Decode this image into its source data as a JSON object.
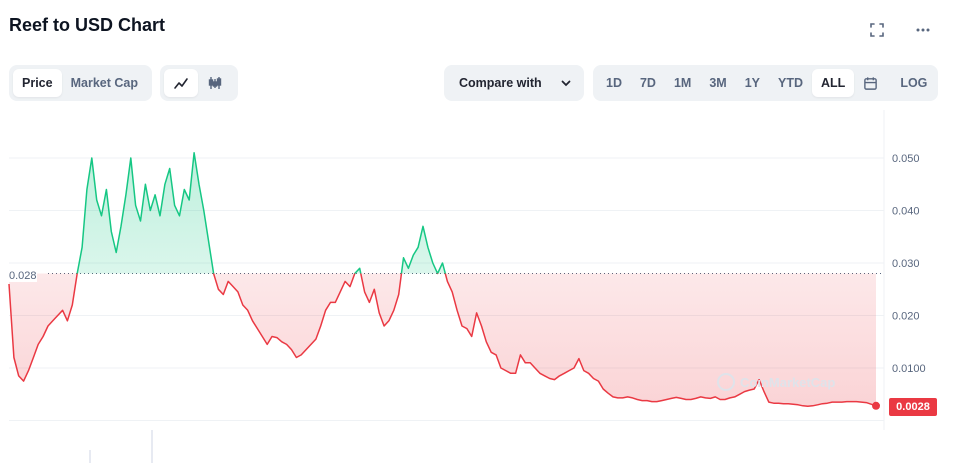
{
  "header": {
    "title": "Reef to USD Chart"
  },
  "icons": {
    "fullscreen": "fullscreen-icon",
    "more": "more-icon",
    "calendar": "calendar-icon",
    "line": "line-chart-icon",
    "candle": "candlestick-icon",
    "chevron": "chevron-down-icon"
  },
  "toolbar": {
    "type_tabs": [
      "Price",
      "Market Cap"
    ],
    "compare_label": "Compare with",
    "ranges": [
      "1D",
      "7D",
      "1M",
      "3M",
      "1Y",
      "YTD",
      "ALL"
    ],
    "log_label": "LOG"
  },
  "chart_data": {
    "type": "area",
    "y_ticks": [
      "0.050",
      "0.040",
      "0.030",
      "0.020",
      "0.0100"
    ],
    "reference_label": "0.028",
    "current_price_label": "0.0028",
    "watermark": "CoinMarketCap",
    "reference": 0.028,
    "ylim": [
      0,
      0.058
    ],
    "up_color": "#16c784",
    "down_color": "#ea3943",
    "values": [
      0.026,
      0.012,
      0.0085,
      0.0075,
      0.0095,
      0.012,
      0.0145,
      0.016,
      0.018,
      0.019,
      0.02,
      0.021,
      0.019,
      0.022,
      0.028,
      0.033,
      0.044,
      0.05,
      0.042,
      0.039,
      0.044,
      0.036,
      0.032,
      0.037,
      0.043,
      0.05,
      0.041,
      0.038,
      0.045,
      0.04,
      0.043,
      0.039,
      0.045,
      0.048,
      0.041,
      0.039,
      0.044,
      0.042,
      0.051,
      0.045,
      0.04,
      0.034,
      0.028,
      0.025,
      0.024,
      0.0265,
      0.0255,
      0.0245,
      0.022,
      0.021,
      0.019,
      0.0175,
      0.016,
      0.0145,
      0.016,
      0.0158,
      0.015,
      0.0145,
      0.0135,
      0.012,
      0.0125,
      0.0135,
      0.0145,
      0.0155,
      0.018,
      0.021,
      0.0225,
      0.0225,
      0.0245,
      0.0265,
      0.0255,
      0.028,
      0.029,
      0.0245,
      0.0225,
      0.025,
      0.0205,
      0.018,
      0.019,
      0.021,
      0.024,
      0.031,
      0.029,
      0.0315,
      0.033,
      0.037,
      0.033,
      0.03,
      0.028,
      0.03,
      0.0265,
      0.0245,
      0.021,
      0.018,
      0.0175,
      0.016,
      0.0205,
      0.018,
      0.015,
      0.013,
      0.0125,
      0.01,
      0.0095,
      0.009,
      0.009,
      0.0125,
      0.011,
      0.011,
      0.01,
      0.009,
      0.0085,
      0.008,
      0.0078,
      0.0085,
      0.009,
      0.0095,
      0.01,
      0.0118,
      0.0095,
      0.009,
      0.008,
      0.0075,
      0.006,
      0.0052,
      0.0045,
      0.0043,
      0.0043,
      0.0045,
      0.0043,
      0.004,
      0.0038,
      0.0038,
      0.0036,
      0.0036,
      0.0038,
      0.004,
      0.0042,
      0.0044,
      0.0042,
      0.004,
      0.004,
      0.0042,
      0.0045,
      0.0043,
      0.0042,
      0.0045,
      0.004,
      0.004,
      0.0043,
      0.0045,
      0.005,
      0.0055,
      0.0058,
      0.006,
      0.0078,
      0.0055,
      0.0035,
      0.0033,
      0.0033,
      0.0032,
      0.0032,
      0.0031,
      0.003,
      0.0028,
      0.0027,
      0.0028,
      0.003,
      0.0032,
      0.0033,
      0.0035,
      0.0035,
      0.0035,
      0.0036,
      0.0036,
      0.0036,
      0.0035,
      0.0034,
      0.0031,
      0.0028
    ]
  }
}
